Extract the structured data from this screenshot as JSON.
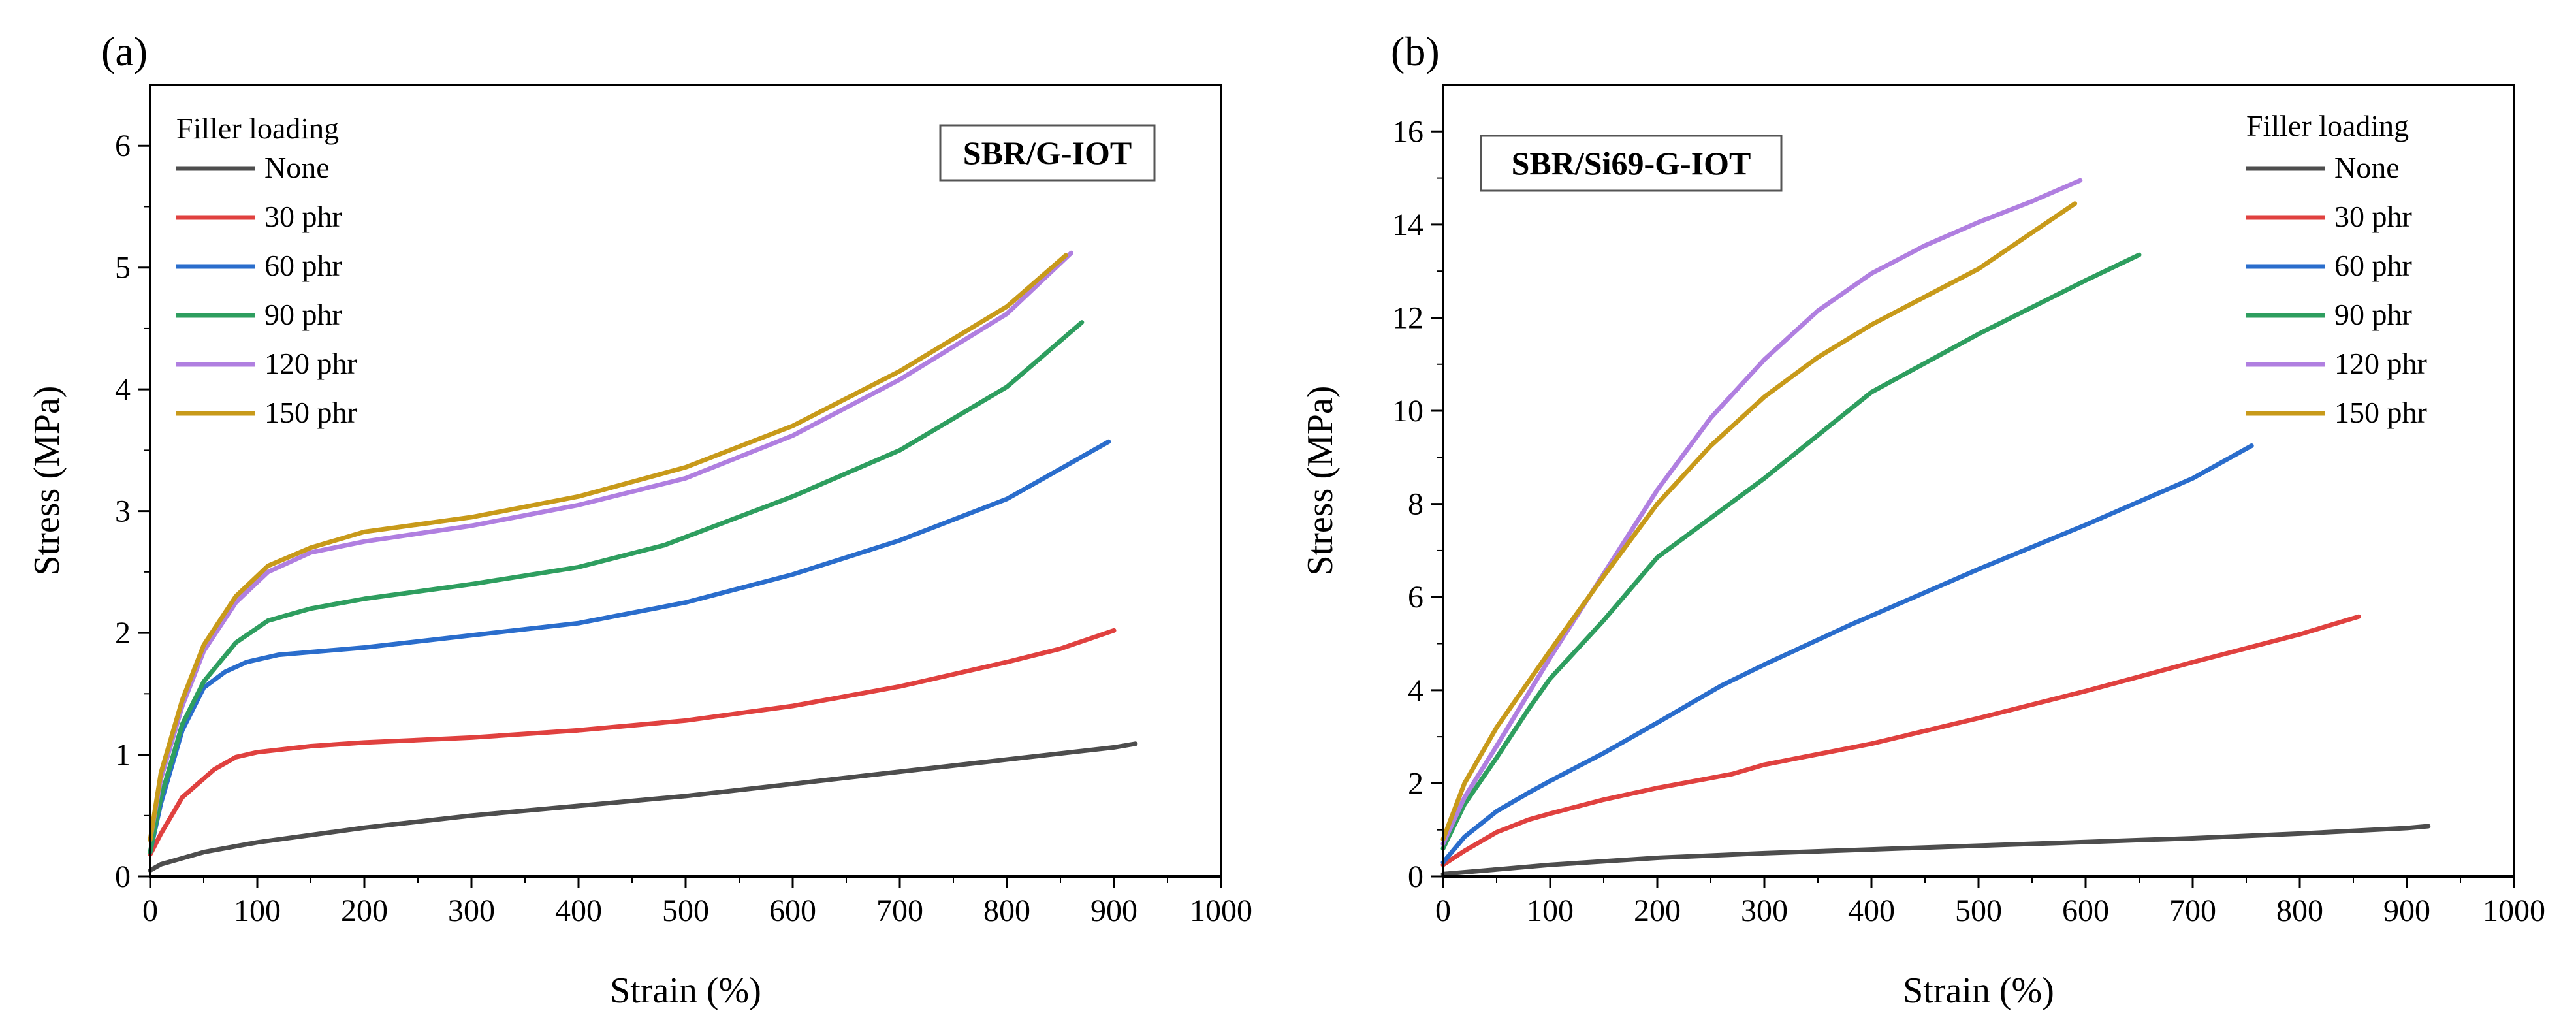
{
  "chart_data": [
    {
      "type": "line",
      "panel_label": "(a)",
      "sample_label": "SBR/G-IOT",
      "xlabel": "Strain (%)",
      "ylabel": "Stress (MPa)",
      "xlim": [
        0,
        1000
      ],
      "ylim": [
        0,
        6.5
      ],
      "x_ticks": [
        0,
        100,
        200,
        300,
        400,
        500,
        600,
        700,
        800,
        900,
        1000
      ],
      "y_ticks": [
        0,
        1,
        2,
        3,
        4,
        5,
        6
      ],
      "legend_title": "Filler loading",
      "legend_position": "top-left",
      "series": [
        {
          "name": "None",
          "color": "#4d4d4d",
          "points": [
            [
              0,
              0.05
            ],
            [
              10,
              0.1
            ],
            [
              50,
              0.2
            ],
            [
              100,
              0.28
            ],
            [
              200,
              0.4
            ],
            [
              300,
              0.5
            ],
            [
              400,
              0.58
            ],
            [
              500,
              0.66
            ],
            [
              600,
              0.76
            ],
            [
              700,
              0.86
            ],
            [
              800,
              0.96
            ],
            [
              900,
              1.06
            ],
            [
              920,
              1.09
            ]
          ]
        },
        {
          "name": "30 phr",
          "color": "#e0413f",
          "points": [
            [
              0,
              0.18
            ],
            [
              10,
              0.35
            ],
            [
              30,
              0.65
            ],
            [
              60,
              0.88
            ],
            [
              80,
              0.98
            ],
            [
              100,
              1.02
            ],
            [
              150,
              1.07
            ],
            [
              200,
              1.1
            ],
            [
              300,
              1.14
            ],
            [
              400,
              1.2
            ],
            [
              500,
              1.28
            ],
            [
              600,
              1.4
            ],
            [
              700,
              1.56
            ],
            [
              800,
              1.76
            ],
            [
              850,
              1.87
            ],
            [
              900,
              2.02
            ]
          ]
        },
        {
          "name": "60 phr",
          "color": "#2a6dcc",
          "points": [
            [
              0,
              0.2
            ],
            [
              10,
              0.6
            ],
            [
              30,
              1.2
            ],
            [
              50,
              1.55
            ],
            [
              70,
              1.68
            ],
            [
              90,
              1.76
            ],
            [
              120,
              1.82
            ],
            [
              200,
              1.88
            ],
            [
              300,
              1.98
            ],
            [
              400,
              2.08
            ],
            [
              500,
              2.25
            ],
            [
              600,
              2.48
            ],
            [
              700,
              2.76
            ],
            [
              800,
              3.1
            ],
            [
              895,
              3.57
            ]
          ]
        },
        {
          "name": "90 phr",
          "color": "#2e9e5f",
          "points": [
            [
              0,
              0.2
            ],
            [
              10,
              0.65
            ],
            [
              30,
              1.25
            ],
            [
              50,
              1.6
            ],
            [
              80,
              1.92
            ],
            [
              110,
              2.1
            ],
            [
              150,
              2.2
            ],
            [
              200,
              2.28
            ],
            [
              300,
              2.4
            ],
            [
              400,
              2.54
            ],
            [
              480,
              2.72
            ],
            [
              600,
              3.12
            ],
            [
              700,
              3.5
            ],
            [
              800,
              4.02
            ],
            [
              870,
              4.55
            ]
          ]
        },
        {
          "name": "120 phr",
          "color": "#b07fe0",
          "points": [
            [
              0,
              0.3
            ],
            [
              10,
              0.8
            ],
            [
              30,
              1.4
            ],
            [
              50,
              1.85
            ],
            [
              80,
              2.25
            ],
            [
              110,
              2.5
            ],
            [
              150,
              2.66
            ],
            [
              200,
              2.75
            ],
            [
              300,
              2.88
            ],
            [
              400,
              3.05
            ],
            [
              500,
              3.27
            ],
            [
              600,
              3.62
            ],
            [
              700,
              4.08
            ],
            [
              800,
              4.62
            ],
            [
              860,
              5.12
            ]
          ]
        },
        {
          "name": "150 phr",
          "color": "#c89a1a",
          "points": [
            [
              0,
              0.3
            ],
            [
              10,
              0.85
            ],
            [
              30,
              1.45
            ],
            [
              50,
              1.9
            ],
            [
              80,
              2.3
            ],
            [
              110,
              2.55
            ],
            [
              150,
              2.7
            ],
            [
              200,
              2.83
            ],
            [
              300,
              2.95
            ],
            [
              400,
              3.12
            ],
            [
              500,
              3.36
            ],
            [
              600,
              3.7
            ],
            [
              700,
              4.15
            ],
            [
              800,
              4.68
            ],
            [
              855,
              5.1
            ]
          ]
        }
      ]
    },
    {
      "type": "line",
      "panel_label": "(b)",
      "sample_label": "SBR/Si69-G-IOT",
      "xlabel": "Strain (%)",
      "ylabel": "Stress (MPa)",
      "xlim": [
        0,
        1000
      ],
      "ylim": [
        0,
        17
      ],
      "x_ticks": [
        0,
        100,
        200,
        300,
        400,
        500,
        600,
        700,
        800,
        900,
        1000
      ],
      "y_ticks": [
        0,
        2,
        4,
        6,
        8,
        10,
        12,
        14,
        16
      ],
      "legend_title": "Filler loading",
      "legend_position": "top-right",
      "series": [
        {
          "name": "None",
          "color": "#4d4d4d",
          "points": [
            [
              0,
              0.05
            ],
            [
              50,
              0.15
            ],
            [
              100,
              0.25
            ],
            [
              200,
              0.4
            ],
            [
              300,
              0.5
            ],
            [
              400,
              0.58
            ],
            [
              500,
              0.66
            ],
            [
              600,
              0.74
            ],
            [
              700,
              0.82
            ],
            [
              800,
              0.92
            ],
            [
              900,
              1.04
            ],
            [
              920,
              1.08
            ]
          ]
        },
        {
          "name": "30 phr",
          "color": "#e0413f",
          "points": [
            [
              0,
              0.25
            ],
            [
              20,
              0.55
            ],
            [
              50,
              0.95
            ],
            [
              80,
              1.22
            ],
            [
              100,
              1.35
            ],
            [
              150,
              1.65
            ],
            [
              200,
              1.9
            ],
            [
              270,
              2.2
            ],
            [
              300,
              2.4
            ],
            [
              400,
              2.85
            ],
            [
              500,
              3.4
            ],
            [
              600,
              3.98
            ],
            [
              700,
              4.6
            ],
            [
              800,
              5.2
            ],
            [
              855,
              5.58
            ]
          ]
        },
        {
          "name": "60 phr",
          "color": "#2a6dcc",
          "points": [
            [
              0,
              0.3
            ],
            [
              20,
              0.85
            ],
            [
              50,
              1.4
            ],
            [
              80,
              1.8
            ],
            [
              100,
              2.05
            ],
            [
              150,
              2.65
            ],
            [
              200,
              3.3
            ],
            [
              260,
              4.1
            ],
            [
              300,
              4.55
            ],
            [
              380,
              5.4
            ],
            [
              400,
              5.6
            ],
            [
              500,
              6.6
            ],
            [
              600,
              7.55
            ],
            [
              700,
              8.55
            ],
            [
              755,
              9.25
            ]
          ]
        },
        {
          "name": "90 phr",
          "color": "#2e9e5f",
          "points": [
            [
              0,
              0.6
            ],
            [
              20,
              1.55
            ],
            [
              50,
              2.55
            ],
            [
              80,
              3.6
            ],
            [
              100,
              4.25
            ],
            [
              150,
              5.5
            ],
            [
              200,
              6.85
            ],
            [
              300,
              8.55
            ],
            [
              400,
              10.4
            ],
            [
              500,
              11.65
            ],
            [
              600,
              12.8
            ],
            [
              650,
              13.35
            ]
          ]
        },
        {
          "name": "120 phr",
          "color": "#b07fe0",
          "points": [
            [
              0,
              0.7
            ],
            [
              20,
              1.7
            ],
            [
              50,
              2.8
            ],
            [
              100,
              4.7
            ],
            [
              150,
              6.5
            ],
            [
              200,
              8.3
            ],
            [
              250,
              9.85
            ],
            [
              300,
              11.1
            ],
            [
              350,
              12.15
            ],
            [
              400,
              12.95
            ],
            [
              450,
              13.55
            ],
            [
              500,
              14.05
            ],
            [
              550,
              14.5
            ],
            [
              595,
              14.95
            ]
          ]
        },
        {
          "name": "150 phr",
          "color": "#c89a1a",
          "points": [
            [
              0,
              0.8
            ],
            [
              20,
              2.0
            ],
            [
              50,
              3.2
            ],
            [
              100,
              4.85
            ],
            [
              150,
              6.45
            ],
            [
              200,
              8.0
            ],
            [
              250,
              9.25
            ],
            [
              300,
              10.3
            ],
            [
              350,
              11.15
            ],
            [
              400,
              11.85
            ],
            [
              500,
              13.05
            ],
            [
              590,
              14.45
            ]
          ]
        }
      ]
    }
  ]
}
